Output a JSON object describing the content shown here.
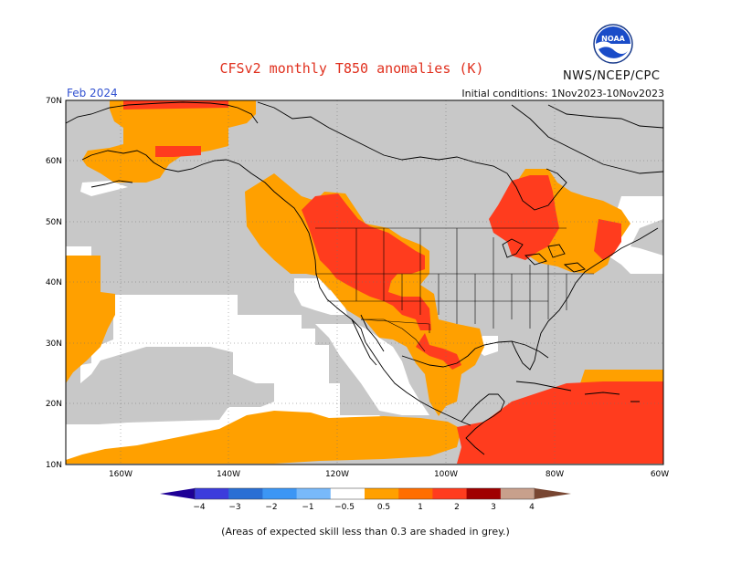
{
  "header": {
    "title": "CFSv2 monthly T850 anomalies (K)",
    "org": "NWS/NCEP/CPC",
    "logo_text": "NOAA",
    "valid_month": "Feb 2024",
    "init_conditions": "Initial conditions: 1Nov2023-10Nov2023"
  },
  "map": {
    "lat_labels": [
      "70N",
      "60N",
      "50N",
      "40N",
      "30N",
      "20N",
      "10N"
    ],
    "lon_labels": [
      "160W",
      "140W",
      "120W",
      "100W",
      "80W",
      "60W"
    ],
    "grey_meaning": "low skill",
    "colors": {
      "grey": "#c8c8c8",
      "white": "#ffffff",
      "orange": "#ffa000",
      "red": "#ff3c1e",
      "darkred": "#a00000",
      "coast": "#000000"
    }
  },
  "legend": {
    "colors": [
      "#1e0096",
      "#3c3cdc",
      "#2a6fd4",
      "#3c96f5",
      "#78b9fa",
      "#ffffff",
      "#ffa000",
      "#ff6e00",
      "#ff3c1e",
      "#a00000",
      "#c8a08c",
      "#784632"
    ],
    "labels": [
      "−4",
      "−3",
      "−2",
      "−1",
      "−0.5",
      "0.5",
      "1",
      "2",
      "3",
      "4"
    ]
  },
  "footnote": "(Areas of expected skill less than 0.3 are shaded in grey.)"
}
